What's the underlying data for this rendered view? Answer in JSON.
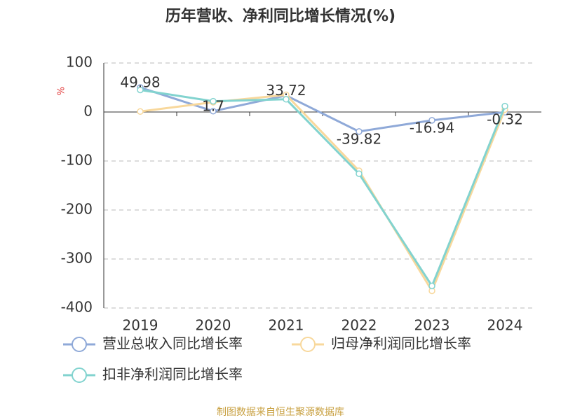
{
  "chart_data": {
    "type": "line",
    "title": "历年营收、净利同比增长情况(%)",
    "y_label": "%",
    "categories": [
      "2019",
      "2020",
      "2021",
      "2022",
      "2023",
      "2024"
    ],
    "series": [
      {
        "name": "营业总收入同比增长率",
        "color": "#8fa9d8",
        "values": [
          49.98,
          1.7,
          33.72,
          -39.82,
          -16.94,
          -0.32
        ],
        "show_labels": true
      },
      {
        "name": "归母净利润同比增长率",
        "color": "#f8d89c",
        "values": [
          1,
          20,
          35,
          -120,
          -365,
          5
        ]
      },
      {
        "name": "扣非净利润同比增长率",
        "color": "#82d3cf",
        "values": [
          45,
          22,
          26,
          -126,
          -355,
          12
        ]
      }
    ],
    "ylim": [
      -400,
      100
    ],
    "yticks": [
      -400,
      -300,
      -200,
      -100,
      0,
      100
    ],
    "grid": true,
    "source": "制图数据来自恒生聚源数据库"
  }
}
